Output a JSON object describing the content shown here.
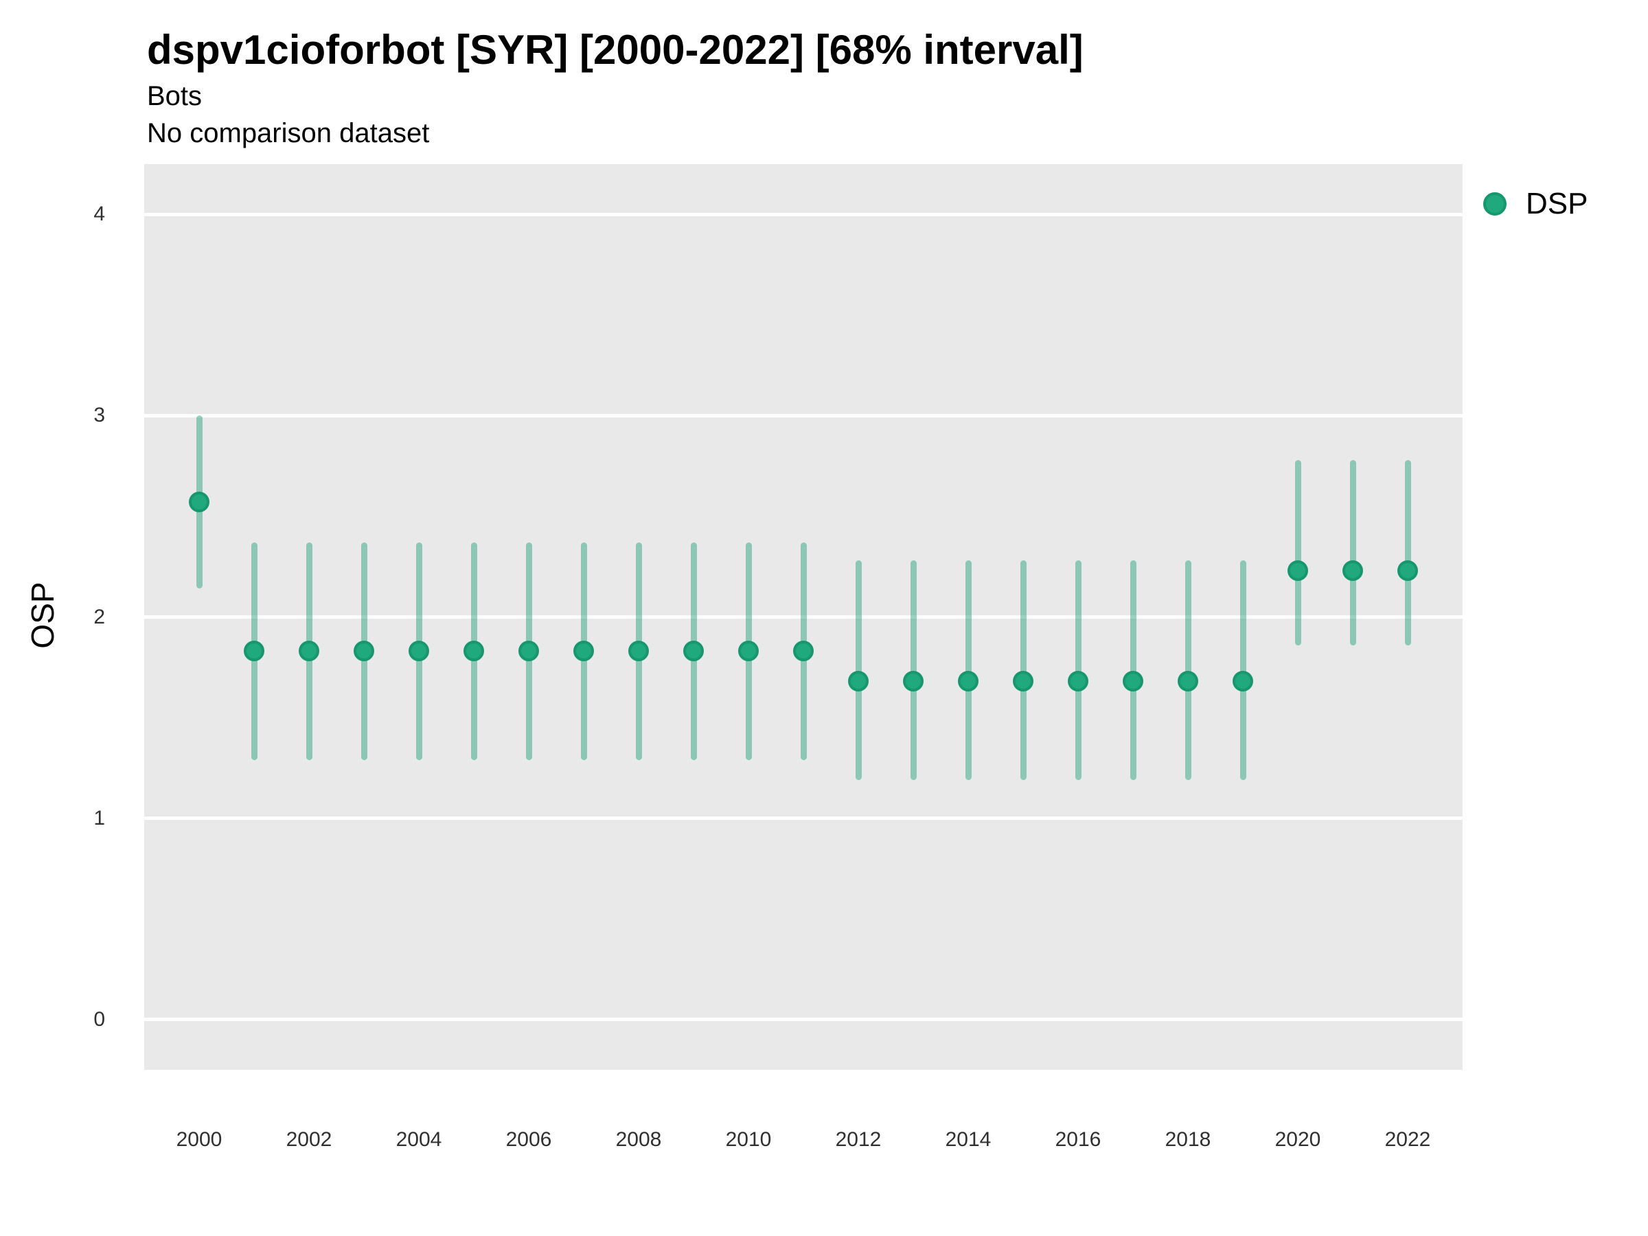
{
  "header": {
    "title": "dspv1cioforbot [SYR] [2000-2022] [68% interval]",
    "subtitle": "Bots",
    "comparison_note": "No comparison dataset"
  },
  "legend": {
    "items": [
      {
        "label": "DSP"
      }
    ]
  },
  "chart_data": {
    "type": "pointrange",
    "title": "dspv1cioforbot [SYR] [2000-2022] [68% interval]",
    "subtitle": "Bots",
    "caption": "No comparison dataset",
    "interval_level": "68%",
    "xlabel": "",
    "ylabel": "OSP",
    "legend_position": "right",
    "grid": "horizontal white gridlines on grey panel",
    "x": [
      2000,
      2001,
      2002,
      2003,
      2004,
      2005,
      2006,
      2007,
      2008,
      2009,
      2010,
      2011,
      2012,
      2013,
      2014,
      2015,
      2016,
      2017,
      2018,
      2019,
      2020,
      2021,
      2022
    ],
    "series": [
      {
        "name": "DSP",
        "mid": [
          2.57,
          1.83,
          1.83,
          1.83,
          1.83,
          1.83,
          1.83,
          1.83,
          1.83,
          1.83,
          1.83,
          1.83,
          1.68,
          1.68,
          1.68,
          1.68,
          1.68,
          1.68,
          1.68,
          1.68,
          2.23,
          2.23,
          2.23
        ],
        "low": [
          2.14,
          1.29,
          1.29,
          1.29,
          1.29,
          1.29,
          1.29,
          1.29,
          1.29,
          1.29,
          1.29,
          1.29,
          1.19,
          1.19,
          1.19,
          1.19,
          1.19,
          1.19,
          1.19,
          1.19,
          1.86,
          1.86,
          1.86
        ],
        "high": [
          3.0,
          2.37,
          2.37,
          2.37,
          2.37,
          2.37,
          2.37,
          2.37,
          2.37,
          2.37,
          2.37,
          2.37,
          2.28,
          2.28,
          2.28,
          2.28,
          2.28,
          2.28,
          2.28,
          2.28,
          2.78,
          2.78,
          2.78
        ]
      }
    ],
    "xlim": [
      1999,
      2023
    ],
    "ylim": [
      -0.25,
      4.25
    ],
    "yticks": [
      0,
      1,
      2,
      3,
      4
    ],
    "xticks": [
      2000,
      2002,
      2004,
      2006,
      2008,
      2010,
      2012,
      2014,
      2016,
      2018,
      2020,
      2022
    ],
    "colors": {
      "point_fill": "#1fa97d",
      "point_stroke": "#17976e",
      "interval": "#1b9e77",
      "interval_opacity": 0.45,
      "panel_background": "#e9e9e9",
      "gridline": "#ffffff"
    }
  }
}
